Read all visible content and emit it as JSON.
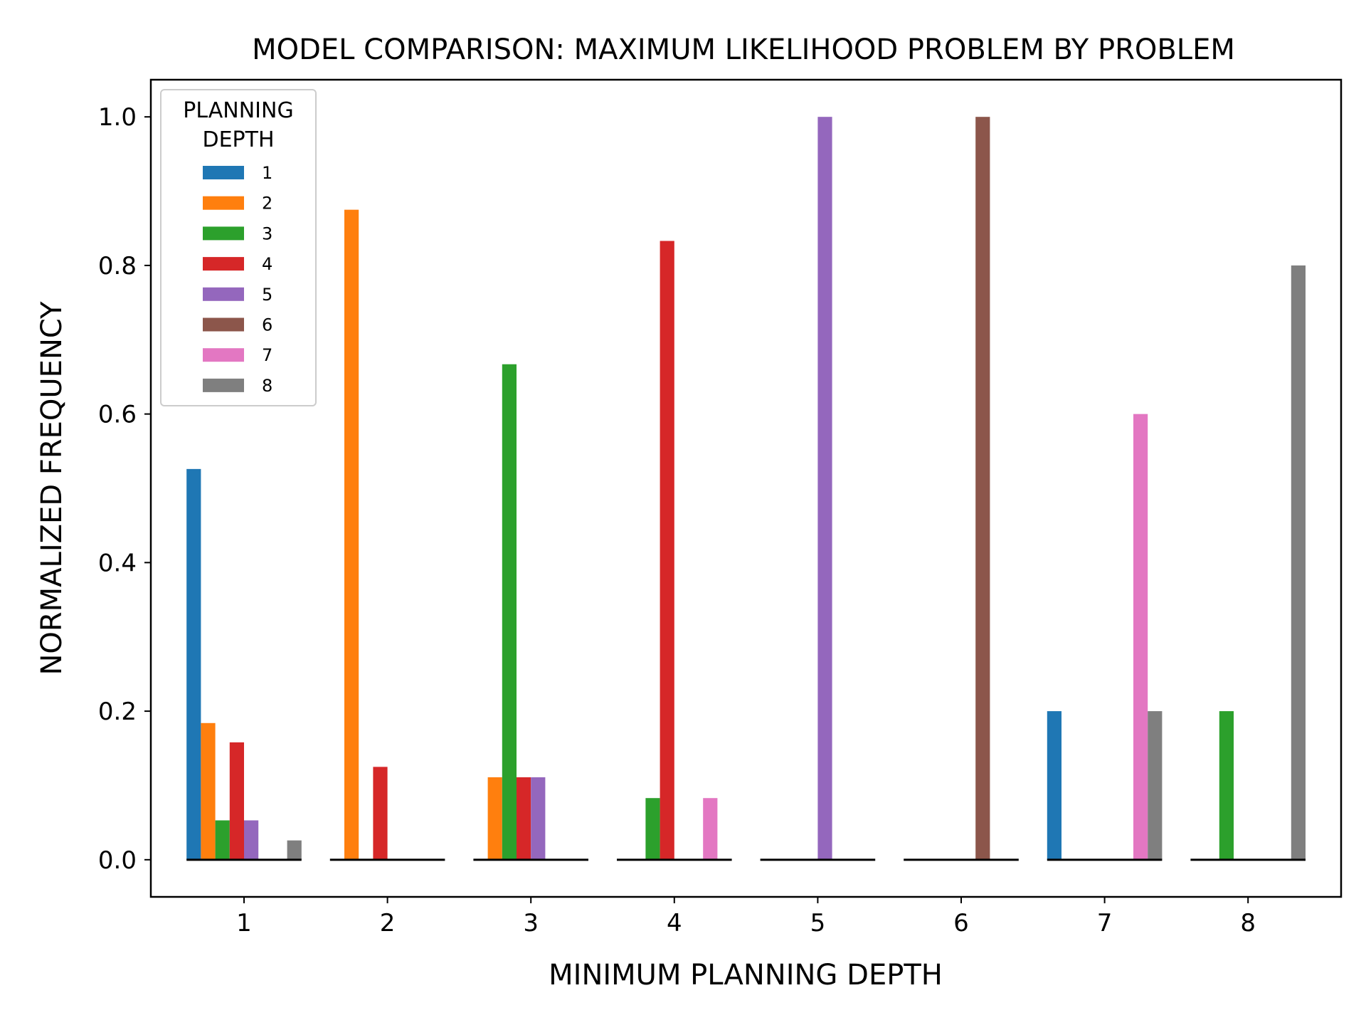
{
  "chart_data": {
    "type": "bar",
    "title": "MODEL COMPARISON: MAXIMUM LIKELIHOOD PROBLEM BY PROBLEM",
    "xlabel": "MINIMUM PLANNING DEPTH",
    "ylabel": "NORMALIZED FREQUENCY",
    "categories": [
      "1",
      "2",
      "3",
      "4",
      "5",
      "6",
      "7",
      "8"
    ],
    "ylim": [
      -0.05,
      1.05
    ],
    "yticks": [
      0.0,
      0.2,
      0.4,
      0.6,
      0.8,
      1.0
    ],
    "ytick_labels": [
      "0.0",
      "0.2",
      "0.4",
      "0.6",
      "0.8",
      "1.0"
    ],
    "grid": false,
    "legend": {
      "title_line1": "PLANNING",
      "title_line2": "DEPTH",
      "placement": "top-left"
    },
    "series": [
      {
        "name": "1",
        "color": "#1f77b4",
        "values": [
          0.526,
          0.0,
          0.0,
          0.0,
          0.0,
          0.0,
          0.2,
          0.0
        ]
      },
      {
        "name": "2",
        "color": "#ff7f0e",
        "values": [
          0.184,
          0.875,
          0.111,
          0.0,
          0.0,
          0.0,
          0.0,
          0.0
        ]
      },
      {
        "name": "3",
        "color": "#2ca02c",
        "values": [
          0.053,
          0.0,
          0.667,
          0.083,
          0.0,
          0.0,
          0.0,
          0.2
        ]
      },
      {
        "name": "4",
        "color": "#d62728",
        "values": [
          0.158,
          0.125,
          0.111,
          0.833,
          0.0,
          0.0,
          0.0,
          0.0
        ]
      },
      {
        "name": "5",
        "color": "#9467bd",
        "values": [
          0.053,
          0.0,
          0.111,
          0.0,
          1.0,
          0.0,
          0.0,
          0.0
        ]
      },
      {
        "name": "6",
        "color": "#8c564b",
        "values": [
          0.0,
          0.0,
          0.0,
          0.0,
          0.0,
          1.0,
          0.0,
          0.0
        ]
      },
      {
        "name": "7",
        "color": "#e377c2",
        "values": [
          0.0,
          0.0,
          0.0,
          0.083,
          0.0,
          0.0,
          0.6,
          0.0
        ]
      },
      {
        "name": "8",
        "color": "#7f7f7f",
        "values": [
          0.026,
          0.0,
          0.0,
          0.0,
          0.0,
          0.0,
          0.2,
          0.8
        ]
      }
    ]
  }
}
